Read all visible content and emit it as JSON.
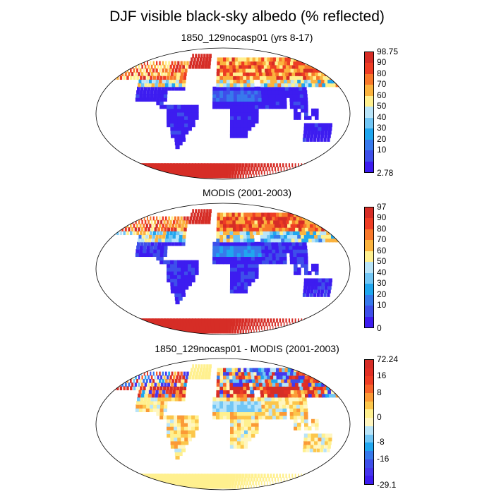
{
  "title": "DJF visible black-sky albedo (% reflected)",
  "panels": [
    {
      "subtitle": "1850_129nocasp01 (yrs 8-17)",
      "colorbar": {
        "labels": [
          "98.75",
          "90",
          "80",
          "70",
          "60",
          "50",
          "40",
          "30",
          "20",
          "10",
          "2.78"
        ],
        "colors": [
          "#d62d26",
          "#ee3d24",
          "#f8782a",
          "#fbb33e",
          "#fff08f",
          "#b9e4f8",
          "#71c6f5",
          "#20a6ef",
          "#3779ec",
          "#3e4fea",
          "#3d1cf0"
        ]
      }
    },
    {
      "subtitle": "MODIS (2001-2003)",
      "colorbar": {
        "labels": [
          "97",
          "90",
          "80",
          "70",
          "60",
          "50",
          "40",
          "30",
          "20",
          "10",
          "0"
        ],
        "colors": [
          "#d62d26",
          "#ee3d24",
          "#f8782a",
          "#fbb33e",
          "#fff08f",
          "#b9e4f8",
          "#71c6f5",
          "#20a6ef",
          "#3779ec",
          "#3e4fea",
          "#3d1cf0"
        ]
      }
    },
    {
      "subtitle": "1850_129nocasp01 - MODIS (2001-2003)",
      "colorbar": {
        "labels": [
          "72.24",
          "16",
          "8",
          "0",
          "-8",
          "-16",
          "-29.1"
        ],
        "colors": [
          "#d62d26",
          "#e12f24",
          "#ee3d24",
          "#f7632a",
          "#fb9a36",
          "#fcc64b",
          "#fff08f",
          "#fff6c0",
          "#b9e4f8",
          "#71c6f5",
          "#20a6ef",
          "#3779ec",
          "#3e4fea",
          "#4535ee",
          "#3d1cf0"
        ]
      }
    }
  ]
}
